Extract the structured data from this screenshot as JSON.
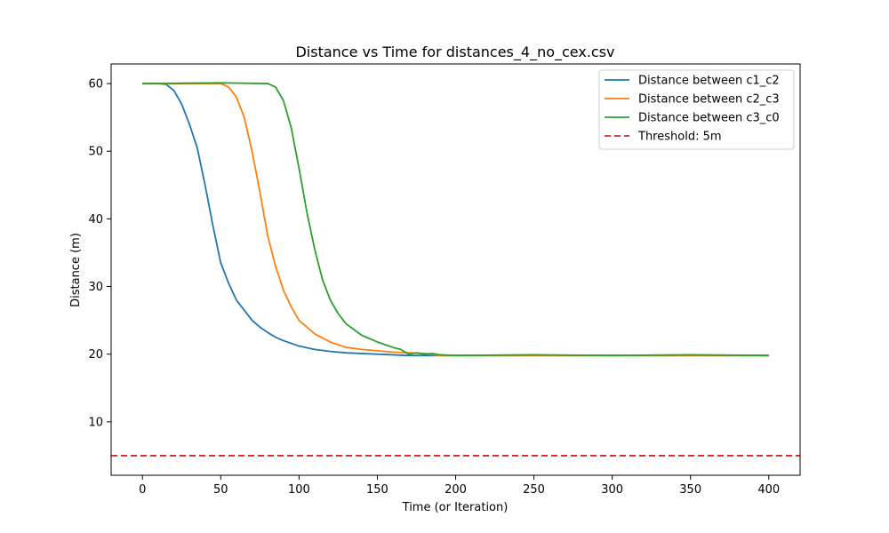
{
  "chart_data": {
    "type": "line",
    "title": "Distance vs Time for distances_4_no_cex.csv",
    "xlabel": "Time (or Iteration)",
    "ylabel": "Distance (m)",
    "xlim": [
      -20,
      420
    ],
    "ylim": [
      2.1,
      62.9
    ],
    "xticks": [
      0,
      50,
      100,
      150,
      200,
      250,
      300,
      350,
      400
    ],
    "yticks": [
      10,
      20,
      30,
      40,
      50,
      60
    ],
    "grid": false,
    "legend_position": "top-right",
    "series": [
      {
        "name": "Distance between c1_c2",
        "color": "#1f77b4",
        "x": [
          0,
          10,
          15,
          20,
          25,
          30,
          35,
          40,
          45,
          50,
          55,
          60,
          65,
          70,
          75,
          80,
          85,
          90,
          100,
          110,
          120,
          130,
          140,
          150,
          160,
          170,
          180,
          190,
          200,
          250,
          300,
          350,
          400
        ],
        "y": [
          60.0,
          60.0,
          59.9,
          59.0,
          57.0,
          54.0,
          50.5,
          45.0,
          39.0,
          33.5,
          30.5,
          28.0,
          26.5,
          25.0,
          24.0,
          23.2,
          22.5,
          22.0,
          21.2,
          20.7,
          20.4,
          20.2,
          20.1,
          20.0,
          19.9,
          19.8,
          19.8,
          19.8,
          19.8,
          19.8,
          19.8,
          19.8,
          19.8
        ]
      },
      {
        "name": "Distance between c2_c3",
        "color": "#ff7f0e",
        "x": [
          0,
          40,
          45,
          50,
          55,
          60,
          65,
          70,
          75,
          80,
          85,
          90,
          95,
          100,
          110,
          120,
          130,
          140,
          150,
          160,
          170,
          180,
          190,
          200,
          250,
          300,
          350,
          400
        ],
        "y": [
          60.0,
          60.0,
          60.0,
          60.0,
          59.5,
          58.0,
          55.0,
          50.0,
          44.0,
          37.5,
          33.0,
          29.5,
          27.0,
          25.0,
          23.0,
          21.8,
          21.0,
          20.7,
          20.5,
          20.3,
          20.2,
          20.1,
          19.8,
          19.8,
          19.8,
          19.8,
          19.8,
          19.8
        ]
      },
      {
        "name": "Distance between c3_c0",
        "color": "#2ca02c",
        "x": [
          0,
          50,
          80,
          85,
          90,
          95,
          100,
          105,
          110,
          115,
          120,
          125,
          130,
          140,
          150,
          160,
          165,
          170,
          175,
          180,
          185,
          190,
          200,
          250,
          300,
          350,
          400
        ],
        "y": [
          60.0,
          60.1,
          60.0,
          59.5,
          57.5,
          53.5,
          47.5,
          41.0,
          35.5,
          31.0,
          28.0,
          26.0,
          24.5,
          22.8,
          21.8,
          21.0,
          20.7,
          20.0,
          20.2,
          20.0,
          20.1,
          19.9,
          19.8,
          19.9,
          19.8,
          19.9,
          19.8
        ]
      },
      {
        "name": "Threshold: 5m",
        "color": "#d62728",
        "dashed": true,
        "x": [
          -20,
          420
        ],
        "y": [
          5,
          5
        ]
      }
    ]
  }
}
